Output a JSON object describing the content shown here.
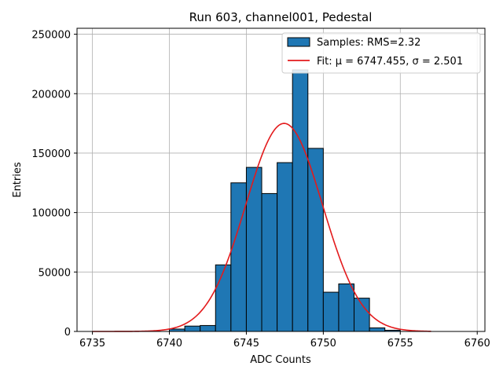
{
  "chart_data": {
    "type": "bar",
    "title": "Run 603, channel001, Pedestal",
    "xlabel": "ADC Counts",
    "ylabel": "Entries",
    "xlim": [
      6734,
      6760.5
    ],
    "ylim": [
      0,
      255000
    ],
    "xticks": [
      6735,
      6740,
      6745,
      6750,
      6755,
      6760
    ],
    "yticks": [
      0,
      50000,
      100000,
      150000,
      200000,
      250000
    ],
    "grid": true,
    "legend_position": "top-right",
    "bin_width": 1,
    "bins": [
      {
        "x": 6740,
        "value": 2000
      },
      {
        "x": 6741,
        "value": 4500
      },
      {
        "x": 6742,
        "value": 5000
      },
      {
        "x": 6743,
        "value": 56000
      },
      {
        "x": 6744,
        "value": 125000
      },
      {
        "x": 6745,
        "value": 138000
      },
      {
        "x": 6746,
        "value": 116000
      },
      {
        "x": 6747,
        "value": 142000
      },
      {
        "x": 6748,
        "value": 220000
      },
      {
        "x": 6749,
        "value": 154000
      },
      {
        "x": 6750,
        "value": 33000
      },
      {
        "x": 6751,
        "value": 40000
      },
      {
        "x": 6752,
        "value": 28000
      },
      {
        "x": 6753,
        "value": 3000
      },
      {
        "x": 6754,
        "value": 1000
      }
    ],
    "series": [
      {
        "name": "Samples: RMS=2.32",
        "type": "histogram",
        "color": "#1f77b4",
        "edgecolor": "#000000"
      },
      {
        "name": "Fit: μ = 6747.455, σ = 2.501",
        "type": "line",
        "color": "#e31a1c",
        "mu": 6747.455,
        "sigma": 2.501,
        "amplitude": 175000,
        "x_range": [
          6735,
          6757
        ]
      }
    ]
  }
}
